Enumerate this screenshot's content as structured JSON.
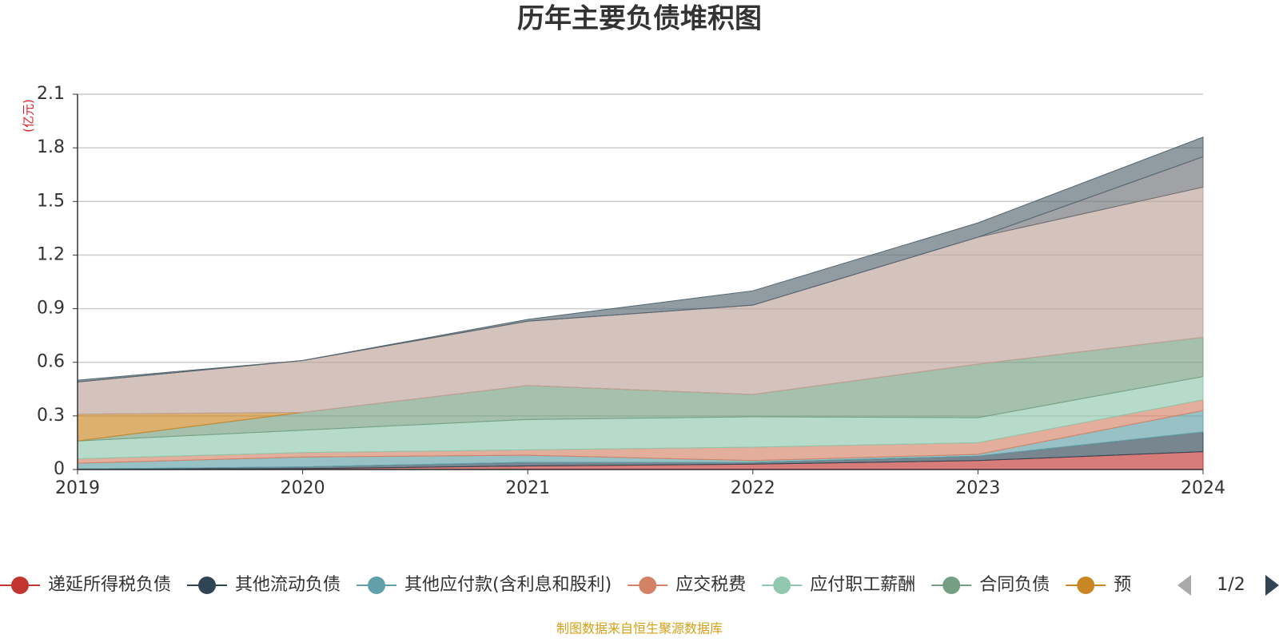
{
  "chart_data": {
    "type": "stacked-area",
    "title": "历年主要负债堆积图",
    "y_unit": "(亿元)",
    "categories": [
      "2019",
      "2020",
      "2021",
      "2022",
      "2023",
      "2024"
    ],
    "ylim": [
      0,
      2.1
    ],
    "yticks": [
      0,
      0.3,
      0.6,
      0.9,
      1.2,
      1.5,
      1.8,
      2.1
    ],
    "grid": true,
    "series": [
      {
        "name": "递延所得税负债",
        "color": "#c23531",
        "values": [
          0.003,
          0.005,
          0.02,
          0.03,
          0.05,
          0.1
        ]
      },
      {
        "name": "其他流动负债",
        "color": "#2f4554",
        "values": [
          0,
          0.01,
          0.02,
          0.01,
          0.025,
          0.11
        ]
      },
      {
        "name": "其他应付款(含利息和股利)",
        "color": "#61a0a8",
        "values": [
          0.032,
          0.055,
          0.04,
          0.01,
          0.01,
          0.12
        ]
      },
      {
        "name": "应交税费",
        "color": "#d48265",
        "values": [
          0.025,
          0.025,
          0.03,
          0.075,
          0.065,
          0.06
        ]
      },
      {
        "name": "应付职工薪酬",
        "color": "#91c7ae",
        "values": [
          0.1,
          0.125,
          0.17,
          0.17,
          0.14,
          0.13
        ]
      },
      {
        "name": "合同负债",
        "color": "#749f83",
        "values": [
          0,
          0.1,
          0.19,
          0.125,
          0.3,
          0.22
        ]
      },
      {
        "name": "预",
        "color": "#ca8622",
        "values": [
          0.15,
          0,
          0,
          0,
          0,
          0
        ]
      },
      {
        "color": "#bda29a",
        "values": [
          0.18,
          0.29,
          0.36,
          0.5,
          0.71,
          0.84
        ]
      },
      {
        "color": "#6e7074",
        "values": [
          0,
          0,
          0,
          0,
          0,
          0.17
        ]
      },
      {
        "color": "#546570",
        "values": [
          0.01,
          0,
          0.01,
          0.08,
          0.08,
          0.11
        ]
      }
    ],
    "legend_page": "1/2",
    "source": "制图数据来自恒生聚源数据库"
  }
}
